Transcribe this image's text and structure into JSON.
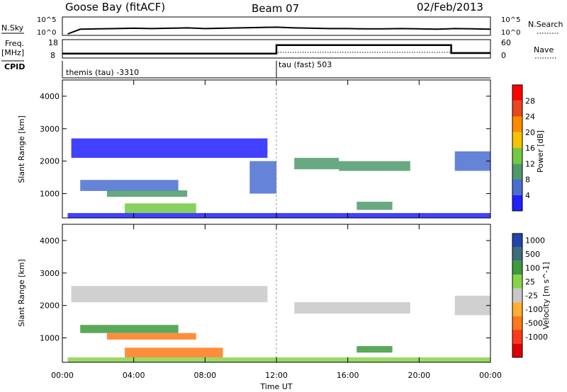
{
  "header": {
    "station": "Goose Bay (fitACF)",
    "beam": "Beam 07",
    "date": "02/Feb/2013"
  },
  "panels": {
    "nsky": {
      "left_label": "N.Sky",
      "right_label": "N.Search",
      "left_ticks": [
        "10^5",
        "10^0"
      ],
      "right_ticks": [
        "10^5",
        "10^0"
      ]
    },
    "freq": {
      "left_label": "Freq.",
      "left_unit": "[MHz]",
      "right_label": "Nave",
      "left_ticks": [
        "18",
        "8"
      ],
      "right_ticks": [
        "60",
        "0"
      ]
    },
    "cpid": {
      "label": "CPID",
      "segments": [
        {
          "start_hour": 0,
          "text": "themis (tau) -3310"
        },
        {
          "start_hour": 12,
          "text": "tau (fast) 503"
        }
      ]
    }
  },
  "power_panel": {
    "ylabel": "Slant Range [km]",
    "colorbar_label": "Power [dB]",
    "colorbar_ticks": [
      "28",
      "24",
      "20",
      "16",
      "12",
      "8",
      "4"
    ],
    "colorbar_colors": [
      "#ff0000",
      "#e8461e",
      "#ff8a00",
      "#f5c400",
      "#74c943",
      "#4e9a6b",
      "#4a6ed0",
      "#2020ff"
    ]
  },
  "velocity_panel": {
    "ylabel": "Slant Range [km]",
    "colorbar_label": "Velocity [m s^-1]",
    "colorbar_ticks": [
      "1000",
      "500",
      "100",
      "25",
      "-25",
      "-100",
      "-500",
      "-1000"
    ],
    "colorbar_colors": [
      "#2244aa",
      "#3a6e7a",
      "#3d9a3d",
      "#8ad24a",
      "#c8c8c8",
      "#ffb030",
      "#ff7a1a",
      "#ff3a1a",
      "#e00000"
    ]
  },
  "x_axis": {
    "label": "Time UT",
    "ticks": [
      "00:00",
      "04:00",
      "08:00",
      "12:00",
      "16:00",
      "20:00",
      "00:00"
    ]
  },
  "chart_data": [
    {
      "type": "line",
      "name": "N.Sky",
      "x_hours": [
        0.3,
        1,
        2,
        3,
        4,
        5,
        6,
        7,
        8,
        9,
        10,
        11,
        12,
        13,
        14,
        15,
        16,
        17,
        18,
        19,
        20,
        21,
        22,
        23,
        24
      ],
      "y_log10": [
        0.2,
        1.6,
        1.7,
        1.8,
        1.9,
        1.8,
        1.9,
        2.0,
        1.8,
        1.9,
        2.0,
        2.1,
        2.2,
        2.0,
        1.9,
        1.8,
        1.8,
        1.7,
        1.7,
        1.8,
        1.7,
        1.6,
        1.8,
        1.7,
        1.6
      ],
      "ylim_log10": [
        0,
        5
      ]
    },
    {
      "type": "line",
      "name": "Freq.",
      "x_hours": [
        0,
        12,
        21.8,
        24
      ],
      "y": [
        10.2,
        15.2,
        10.5,
        10.5
      ],
      "ylim": [
        8,
        18
      ]
    },
    {
      "type": "heatmap",
      "name": "Power",
      "ylim": [
        250,
        4500
      ],
      "xlim_hours": [
        0,
        24
      ],
      "bands": [
        {
          "x0": 0.5,
          "x1": 11.5,
          "y0": 2100,
          "y1": 2700,
          "value": 5
        },
        {
          "x0": 1.0,
          "x1": 6.5,
          "y0": 1080,
          "y1": 1420,
          "value": 8
        },
        {
          "x0": 2.5,
          "x1": 7.0,
          "y0": 900,
          "y1": 1100,
          "value": 14
        },
        {
          "x0": 3.5,
          "x1": 7.5,
          "y0": 400,
          "y1": 700,
          "value": 18
        },
        {
          "x0": 10.5,
          "x1": 12.0,
          "y0": 1000,
          "y1": 2000,
          "value": 10
        },
        {
          "x0": 13.0,
          "x1": 15.5,
          "y0": 1750,
          "y1": 2100,
          "value": 14
        },
        {
          "x0": 15.5,
          "x1": 19.5,
          "y0": 1700,
          "y1": 2000,
          "value": 12
        },
        {
          "x0": 16.5,
          "x1": 18.5,
          "y0": 500,
          "y1": 750,
          "value": 14
        },
        {
          "x0": 22.0,
          "x1": 24.0,
          "y0": 1700,
          "y1": 2300,
          "value": 10
        },
        {
          "x0": 0.3,
          "x1": 24.0,
          "y0": 250,
          "y1": 400,
          "value": 6
        }
      ]
    },
    {
      "type": "heatmap",
      "name": "Velocity",
      "ylim": [
        250,
        4500
      ],
      "xlim_hours": [
        0,
        24
      ],
      "bands": [
        {
          "x0": 0.5,
          "x1": 11.5,
          "y0": 2100,
          "y1": 2600,
          "value": 0
        },
        {
          "x0": 1.0,
          "x1": 6.5,
          "y0": 1150,
          "y1": 1400,
          "value": 80
        },
        {
          "x0": 2.5,
          "x1": 7.5,
          "y0": 950,
          "y1": 1150,
          "value": -150
        },
        {
          "x0": 3.5,
          "x1": 9.0,
          "y0": 400,
          "y1": 700,
          "value": -300
        },
        {
          "x0": 13.0,
          "x1": 19.5,
          "y0": 1750,
          "y1": 2100,
          "value": 0
        },
        {
          "x0": 16.5,
          "x1": 18.5,
          "y0": 550,
          "y1": 750,
          "value": 150
        },
        {
          "x0": 22.0,
          "x1": 24.0,
          "y0": 1700,
          "y1": 2300,
          "value": 0
        },
        {
          "x0": 0.3,
          "x1": 24.0,
          "y0": 250,
          "y1": 400,
          "value": 20
        }
      ]
    }
  ]
}
